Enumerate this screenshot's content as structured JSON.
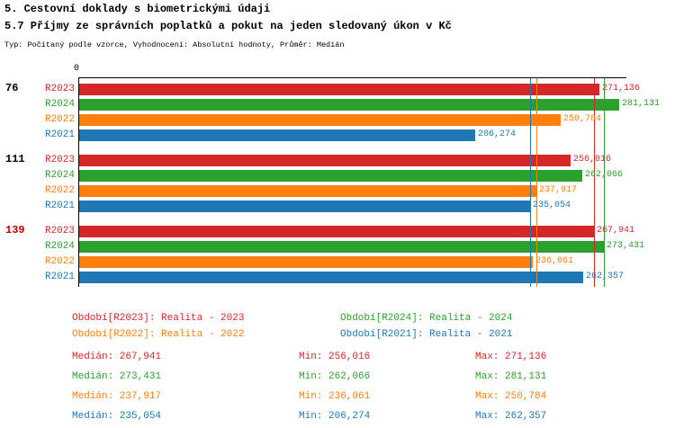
{
  "header": {
    "title1": "5. Cestovní doklady s biometrickými údaji",
    "title2": "5.7 Příjmy ze správních poplatků a pokut na jeden sledovaný úkon v Kč",
    "meta": "Typ: Počítaný podle vzorce, Vyhodnocení: Absolutní hodnoty, Průměr: Medián"
  },
  "axis": {
    "origin_label": "0"
  },
  "colors": {
    "R2023": "#d62728",
    "R2024": "#2ca02c",
    "R2022": "#ff7f0e",
    "R2021": "#1f77b4"
  },
  "chart_data": {
    "type": "bar",
    "orientation": "horizontal",
    "xlim": [
      0,
      285000
    ],
    "xlabel": "",
    "ylabel": "",
    "grid": false,
    "series_order": [
      "R2023",
      "R2024",
      "R2022",
      "R2021"
    ],
    "groups": [
      {
        "label": "76",
        "label_color": "#000000",
        "bars": [
          {
            "series": "R2023",
            "value": 271136,
            "label": "271,136"
          },
          {
            "series": "R2024",
            "value": 281131,
            "label": "281,131"
          },
          {
            "series": "R2022",
            "value": 250784,
            "label": "250,784"
          },
          {
            "series": "R2021",
            "value": 206274,
            "label": "206,274"
          }
        ]
      },
      {
        "label": "111",
        "label_color": "#000000",
        "bars": [
          {
            "series": "R2023",
            "value": 256016,
            "label": "256,016"
          },
          {
            "series": "R2024",
            "value": 262066,
            "label": "262,066"
          },
          {
            "series": "R2022",
            "value": 237917,
            "label": "237,917"
          },
          {
            "series": "R2021",
            "value": 235054,
            "label": "235,054"
          }
        ]
      },
      {
        "label": "139",
        "label_color": "#cc0000",
        "bars": [
          {
            "series": "R2023",
            "value": 267941,
            "label": "267,941"
          },
          {
            "series": "R2024",
            "value": 273431,
            "label": "273,431"
          },
          {
            "series": "R2022",
            "value": 236061,
            "label": "236,061"
          },
          {
            "series": "R2021",
            "value": 262357,
            "label": "262,357"
          }
        ]
      }
    ],
    "medians": [
      {
        "series": "R2023",
        "value": 267941
      },
      {
        "series": "R2024",
        "value": 273431
      },
      {
        "series": "R2022",
        "value": 237917
      },
      {
        "series": "R2021",
        "value": 235054
      }
    ]
  },
  "legend": [
    {
      "series": "R2023",
      "label": "Období[R2023]: Realita - 2023"
    },
    {
      "series": "R2024",
      "label": "Období[R2024]: Realita - 2024"
    },
    {
      "series": "R2022",
      "label": "Období[R2022]: Realita - 2022"
    },
    {
      "series": "R2021",
      "label": "Období[R2021]: Realita - 2021"
    }
  ],
  "stats": [
    {
      "series": "R2023",
      "median": "Medián: 267,941",
      "min": "Min: 256,016",
      "max": "Max: 271,136"
    },
    {
      "series": "R2024",
      "median": "Medián: 273,431",
      "min": "Min: 262,066",
      "max": "Max: 281,131"
    },
    {
      "series": "R2022",
      "median": "Medián: 237,917",
      "min": "Min: 236,061",
      "max": "Max: 250,784"
    },
    {
      "series": "R2021",
      "median": "Medián: 235,054",
      "min": "Min: 206,274",
      "max": "Max: 262,357"
    }
  ]
}
